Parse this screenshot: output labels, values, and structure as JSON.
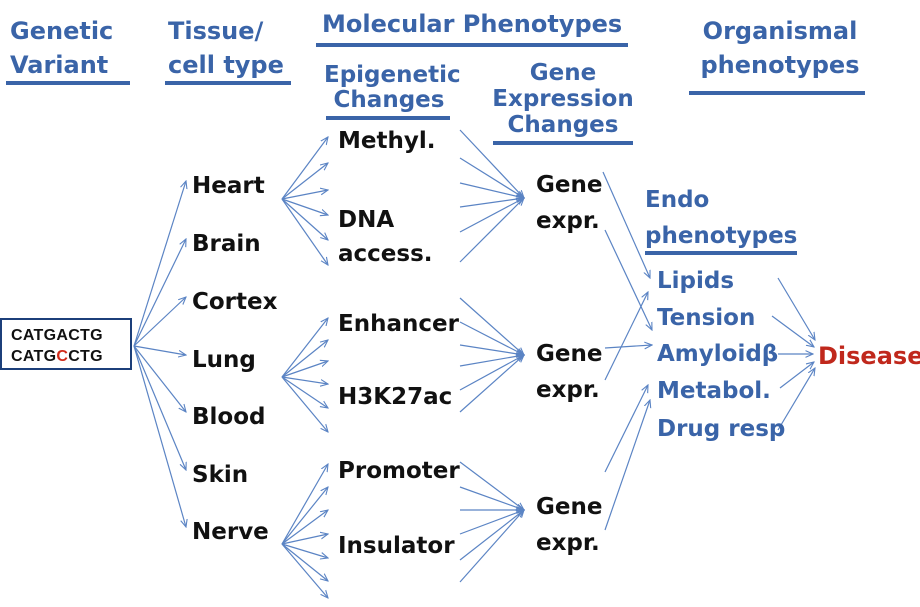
{
  "headers": {
    "genetic_variant": [
      "Genetic",
      "Variant"
    ],
    "tissue": [
      "Tissue/",
      "cell type"
    ],
    "molecular": "Molecular Phenotypes",
    "organismal": [
      "Organismal",
      "phenotypes"
    ],
    "epigenetic": [
      "Epigenetic",
      "Changes"
    ],
    "gene_expression": [
      "Gene",
      "Expression",
      "Changes"
    ],
    "endo": [
      "Endo",
      "phenotypes"
    ]
  },
  "variant": {
    "seq1": "CATGACTG",
    "seq2_prefix": "CATG",
    "seq2_mut": "C",
    "seq2_suffix": "CTG"
  },
  "tissues": [
    "Heart",
    "Brain",
    "Cortex",
    "Lung",
    "Blood",
    "Skin",
    "Nerve"
  ],
  "epigenetic_marks": {
    "methyl": "Methyl.",
    "dna": [
      "DNA",
      "access."
    ],
    "enhancer": "Enhancer",
    "h3k27ac": "H3K27ac",
    "promoter": "Promoter",
    "insulator": "Insulator"
  },
  "gene_expr": [
    "Gene",
    "expr."
  ],
  "endophenotypes": [
    "Lipids",
    "Tension",
    "Amyloidβ",
    "Metabol.",
    "Drug resp"
  ],
  "disease": "Disease",
  "colors": {
    "heading": "#3a64a8",
    "disease": "#c0281c",
    "mutation": "#d12b1a",
    "arrow": "#5b84c4"
  }
}
